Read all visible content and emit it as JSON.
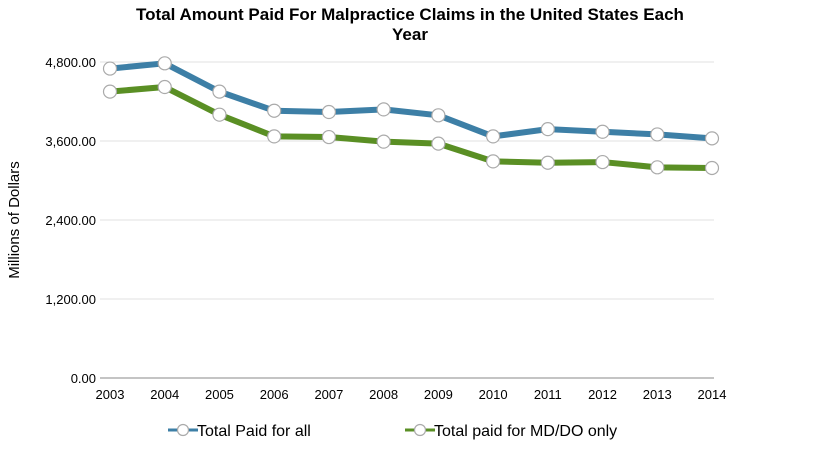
{
  "chart_data": {
    "type": "line",
    "title_line1": "Total Amount Paid For Malpractice Claims in the United States Each",
    "title_line2": "Year",
    "xlabel": "",
    "ylabel": "Millions of Dollars",
    "ylim": [
      0,
      4800
    ],
    "yticks": [
      "0.00",
      "1,200.00",
      "2,400.00",
      "3,600.00",
      "4,800.00"
    ],
    "ytick_values": [
      0,
      1200,
      2400,
      3600,
      4800
    ],
    "categories": [
      "2003",
      "2004",
      "2005",
      "2006",
      "2007",
      "2008",
      "2009",
      "2010",
      "2011",
      "2012",
      "2013",
      "2014"
    ],
    "grid": "horizontal",
    "legend_position": "bottom",
    "series": [
      {
        "name": "Total Paid for all",
        "color": "#3d7fa6",
        "values": [
          4700,
          4780,
          4350,
          4060,
          4040,
          4080,
          3990,
          3670,
          3780,
          3740,
          3700,
          3640
        ]
      },
      {
        "name": "Total paid for MD/DO only",
        "color": "#5a8f24",
        "values": [
          4350,
          4420,
          4000,
          3670,
          3660,
          3590,
          3560,
          3290,
          3270,
          3280,
          3200,
          3190
        ]
      }
    ]
  }
}
